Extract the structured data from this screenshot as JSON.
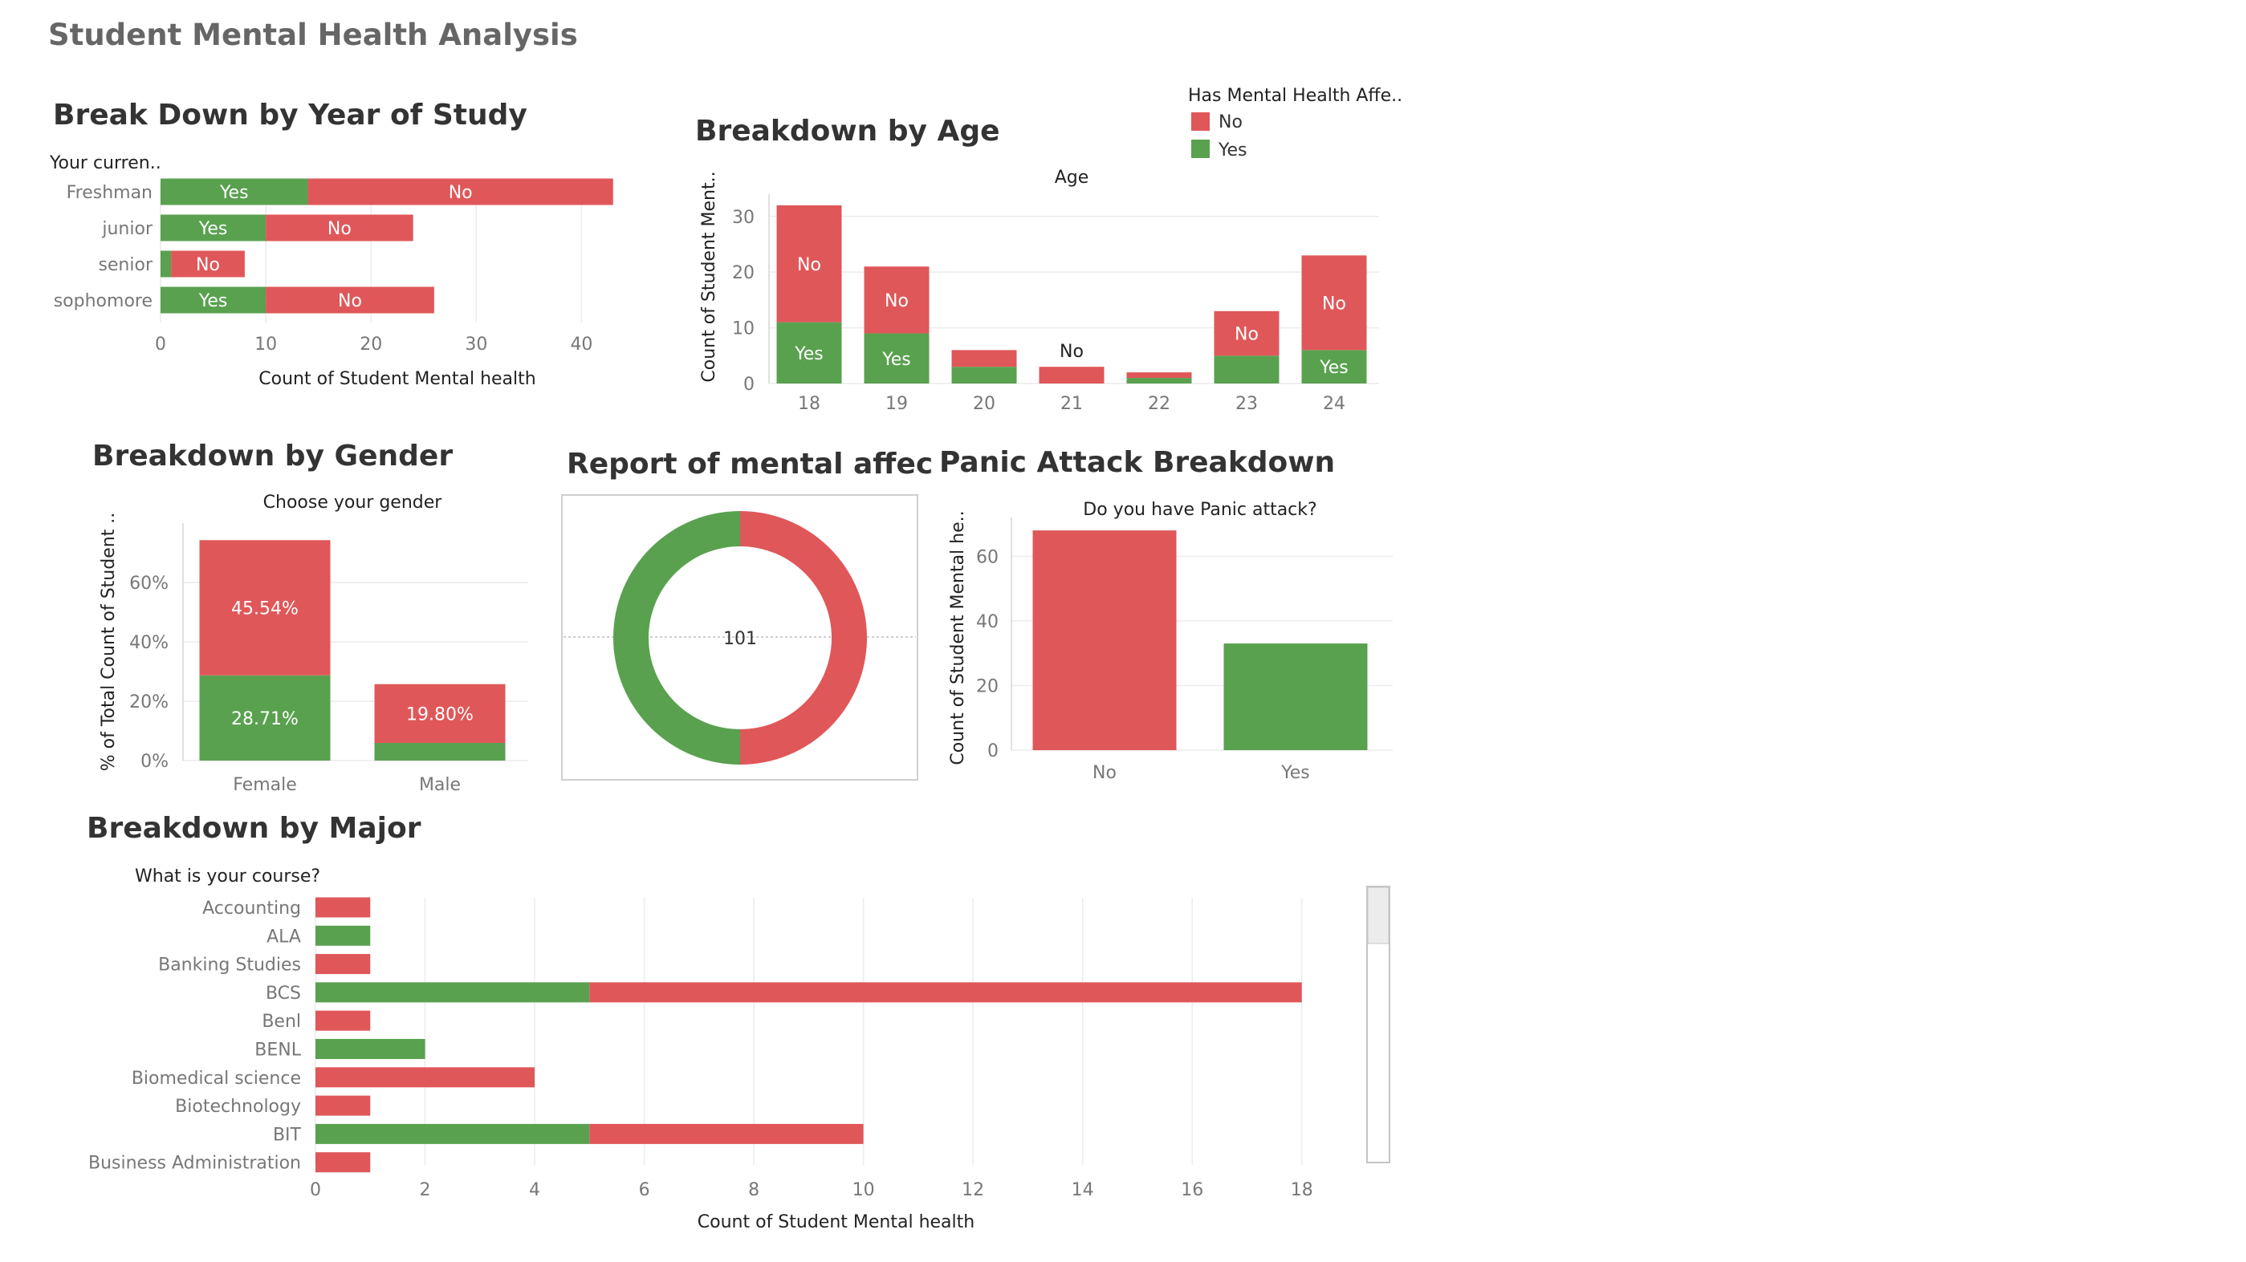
{
  "dashboard": {
    "title": "Student Mental Health Analysis"
  },
  "colors": {
    "no": "#e05759",
    "yes": "#59a14f"
  },
  "legend": {
    "title": "Has Mental Health Affe..",
    "items": [
      "No",
      "Yes"
    ]
  },
  "scrollbar": {
    "present": true
  },
  "chart_data": [
    {
      "type": "bar",
      "orientation": "horizontal",
      "stacked": true,
      "title": "Break Down by Year of Study",
      "ylabel": "Your curren..",
      "xlabel": "Count of Student Mental health",
      "categories": [
        "Freshman",
        "junior",
        "senior",
        "sophomore"
      ],
      "series": [
        {
          "name": "Yes",
          "values": [
            14,
            10,
            1,
            10
          ],
          "labels": [
            "Yes",
            "Yes",
            "",
            "Yes"
          ]
        },
        {
          "name": "No",
          "values": [
            29,
            14,
            7,
            16
          ],
          "labels": [
            "No",
            "No",
            "No",
            "No"
          ]
        }
      ],
      "xlim": [
        0,
        45
      ],
      "xticks": [
        0,
        10,
        20,
        30,
        40
      ]
    },
    {
      "type": "bar",
      "stacked": true,
      "title": "Breakdown by Age",
      "xlabel": "Age",
      "ylabel": "Count of Student Ment..",
      "categories": [
        "18",
        "19",
        "20",
        "21",
        "22",
        "23",
        "24"
      ],
      "series": [
        {
          "name": "Yes",
          "values": [
            11,
            9,
            3,
            0,
            1,
            5,
            6
          ],
          "labels": [
            "Yes",
            "Yes",
            "",
            "",
            "",
            "Yes",
            "Yes"
          ]
        },
        {
          "name": "No",
          "values": [
            21,
            12,
            3,
            3,
            1,
            8,
            17
          ],
          "labels": [
            "No",
            "No",
            "",
            "No",
            "",
            "No",
            "No"
          ]
        }
      ],
      "ylim": [
        0,
        34
      ],
      "yticks": [
        0,
        10,
        20,
        30
      ]
    },
    {
      "type": "bar",
      "stacked": true,
      "title": "Breakdown by Gender",
      "xlabel": "Choose your gender",
      "ylabel": "% of Total Count of Student ..",
      "categories": [
        "Female",
        "Male"
      ],
      "series": [
        {
          "name": "Yes",
          "values": [
            28.71,
            5.95
          ],
          "labels": [
            "28.71%",
            ""
          ]
        },
        {
          "name": "No",
          "values": [
            45.54,
            19.8
          ],
          "labels": [
            "45.54%",
            "19.80%"
          ]
        }
      ],
      "ylim": [
        0,
        80
      ],
      "yticks": [
        "0%",
        "20%",
        "40%",
        "60%"
      ],
      "ytick_values": [
        0,
        20,
        40,
        60
      ]
    },
    {
      "type": "pie",
      "donut": true,
      "title": "Report of mental affect",
      "center_label": "101",
      "slices": [
        {
          "name": "No",
          "value": 50.5
        },
        {
          "name": "Yes",
          "value": 50.5
        }
      ]
    },
    {
      "type": "bar",
      "title": "Panic Attack Breakdown",
      "xlabel": "Do you have Panic attack?",
      "ylabel": "Count of Student Mental he..",
      "categories": [
        "No",
        "Yes"
      ],
      "series": [
        {
          "name": "No",
          "values": [
            68,
            0
          ]
        },
        {
          "name": "Yes",
          "values": [
            0,
            33
          ]
        }
      ],
      "ylim": [
        0,
        72
      ],
      "yticks": [
        0,
        20,
        40,
        60
      ]
    },
    {
      "type": "bar",
      "orientation": "horizontal",
      "stacked": true,
      "title": "Breakdown by Major",
      "ylabel": "What is your course?",
      "xlabel": "Count of Student Mental health",
      "categories": [
        "Accounting",
        "ALA",
        "Banking Studies",
        "BCS",
        "Benl",
        "BENL",
        "Biomedical science",
        "Biotechnology",
        "BIT",
        "Business Administration"
      ],
      "series": [
        {
          "name": "Yes",
          "values": [
            0,
            1,
            0,
            5,
            0,
            2,
            0,
            0,
            5,
            0
          ]
        },
        {
          "name": "No",
          "values": [
            1,
            0,
            1,
            13,
            1,
            0,
            4,
            1,
            5,
            1
          ]
        }
      ],
      "xlim": [
        0,
        19
      ],
      "xticks": [
        0,
        2,
        4,
        6,
        8,
        10,
        12,
        14,
        16,
        18
      ]
    }
  ]
}
